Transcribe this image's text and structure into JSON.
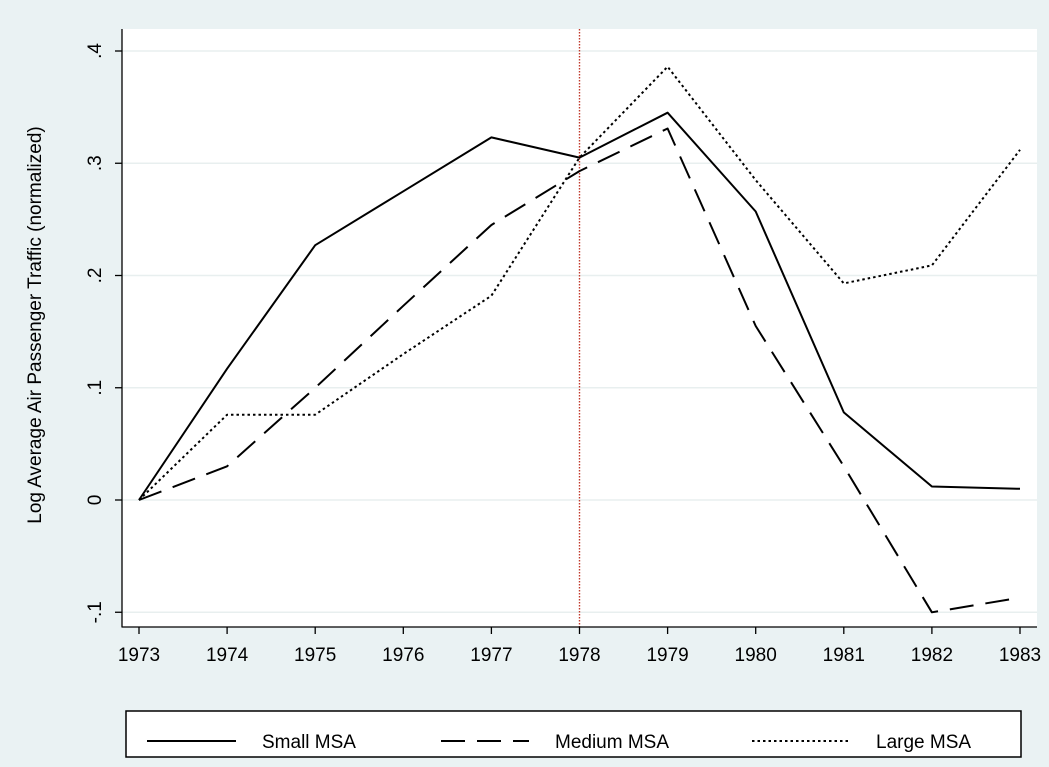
{
  "chart_data": {
    "type": "line",
    "title": "",
    "xlabel": "",
    "ylabel": "Log Average Air Passenger Traffic (normalized)",
    "x": [
      1973,
      1974,
      1975,
      1976,
      1977,
      1978,
      1979,
      1980,
      1981,
      1982,
      1983
    ],
    "x_tick_labels": [
      "1973",
      "1974",
      "1975",
      "1976",
      "1977",
      "1978",
      "1979",
      "1980",
      "1981",
      "1982",
      "1983"
    ],
    "y_ticks": [
      -0.1,
      0,
      0.1,
      0.2,
      0.3,
      0.4
    ],
    "y_tick_labels": [
      "-.1",
      "0",
      ".1",
      ".2",
      ".3",
      ".4"
    ],
    "xlim": [
      1973,
      1983
    ],
    "ylim": [
      -0.11,
      0.41
    ],
    "grid": "horizontal",
    "reference_line": {
      "x": 1978,
      "color": "#c0392b",
      "style": "dotted"
    },
    "legend": {
      "placement": "bottom"
    },
    "series": [
      {
        "name": "Small MSA",
        "line_style": "solid",
        "values": [
          0,
          0.117,
          0.227,
          0.275,
          0.323,
          0.305,
          0.345,
          0.257,
          0.078,
          0.012,
          0.01
        ]
      },
      {
        "name": "Medium MSA",
        "line_style": "dashed",
        "values": [
          0,
          0.03,
          0.1,
          0.173,
          0.245,
          0.293,
          0.331,
          0.155,
          0.03,
          -0.1,
          -0.087
        ]
      },
      {
        "name": "Large MSA",
        "line_style": "dotted",
        "values": [
          0,
          0.076,
          0.076,
          0.13,
          0.182,
          0.305,
          0.386,
          0.285,
          0.193,
          0.209,
          0.312
        ]
      }
    ],
    "colors": {
      "background": "#eaf2f3",
      "plot_background": "#ffffff",
      "grid": "#e8efef",
      "line": "#000000"
    }
  }
}
